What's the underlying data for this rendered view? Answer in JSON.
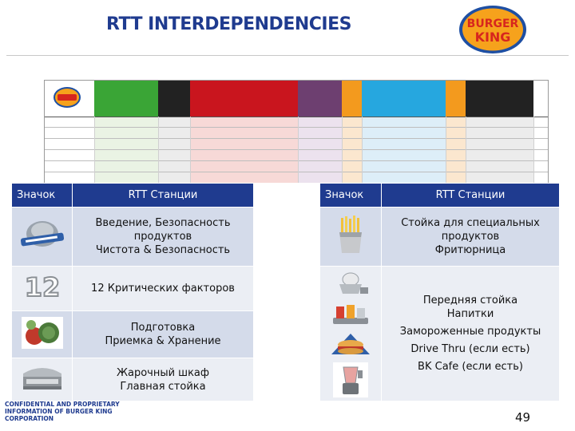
{
  "title": "RTT INTERDEPENDENCIES",
  "colors": {
    "title": "#1f3b8f",
    "table_header": "#1f3b8f",
    "row_dark": "#d4dbea",
    "row_light": "#ebeef4",
    "bk_red": "#d7261e",
    "bk_blue": "#1e4fa3",
    "bk_bun": "#f6a21c"
  },
  "logo": {
    "line1": "BURGER",
    "line2": "KING"
  },
  "table": {
    "headers": {
      "icon_left": "Значок",
      "stations_left": "RTT Станции",
      "icon_right": "Значок",
      "stations_right": "RTT Станции"
    },
    "left_rows": [
      {
        "icon": "food-safety-certificate-icon",
        "lines": [
          "Введение, Безопасность",
          "продуктов",
          "Чистота & Безопасность"
        ]
      },
      {
        "icon": "number-12-icon",
        "icon_text": "12",
        "lines": [
          "12 Критических факторов"
        ]
      },
      {
        "icon": "vegetables-icon",
        "lines": [
          "Подготовка",
          "Приемка & Хранение"
        ]
      },
      {
        "icon": "broiler-icon",
        "lines": [
          "Жарочный шкаф",
          "Главная стойка"
        ]
      }
    ],
    "right_rows": [
      {
        "icons": [
          "fries-icon"
        ],
        "lines": [
          "Стойка для специальных",
          "продуктов",
          "Фритюрница"
        ]
      },
      {
        "icons": [
          "soft-serve-icon",
          "drinks-tray-icon",
          "whopper-icon",
          "blender-icon"
        ],
        "lines": [
          "Передняя стойка",
          "Напитки",
          "Замороженные продукты",
          "Drive Thru (если есть)",
          "BK Cafe (если есть)"
        ]
      }
    ]
  },
  "footer": {
    "confidential": "CONFIDENTIAL AND PROPRIETARY\nINFORMATION  OF BURGER KING\nCORPORATION",
    "page_number": "49"
  }
}
